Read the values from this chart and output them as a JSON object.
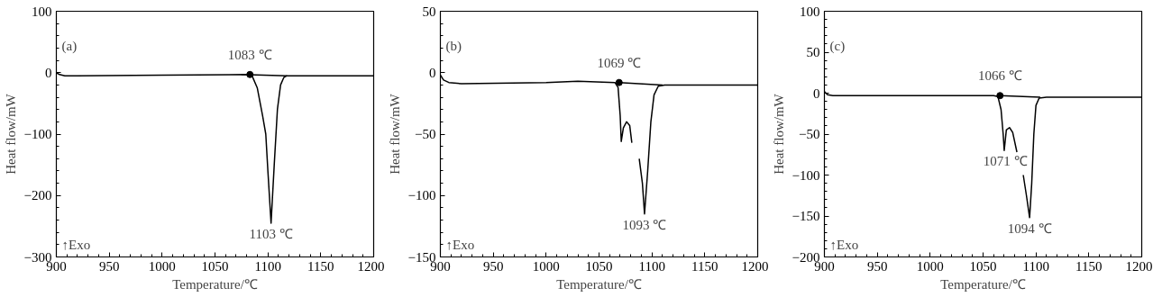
{
  "chart_data": [
    {
      "type": "line",
      "xlabel": "Temperature/℃",
      "ylabel": "Heat flow/mW",
      "xlim": [
        900,
        1200
      ],
      "ylim": [
        -300,
        100
      ],
      "xticks": [
        900,
        950,
        1000,
        1050,
        1100,
        1150,
        1200
      ],
      "yticks": [
        -300,
        -200,
        -100,
        0,
        100
      ],
      "grid": false,
      "annotations": [
        "(a)",
        "↑Exo",
        {
          "text": "1083 ℃",
          "x": 1083,
          "y": -3
        },
        {
          "text": "1103 ℃",
          "x": 1103,
          "y": -245
        }
      ],
      "series": [
        {
          "type": "line",
          "color": "#000000",
          "x": [
            900,
            903,
            908,
            920,
            1000,
            1080,
            1085,
            1090,
            1095,
            1098,
            1100,
            1103,
            1106,
            1109,
            1112,
            1115,
            1118,
            1130,
            1200
          ],
          "values": [
            0,
            -3,
            -5,
            -5,
            -4,
            -3,
            -5,
            -25,
            -70,
            -100,
            -160,
            -245,
            -150,
            -60,
            -20,
            -8,
            -5,
            -5,
            -5
          ]
        },
        {
          "color": "#000000",
          "x": [
            1075,
            1118
          ],
          "values": [
            -3,
            -5
          ]
        },
        {
          "type": "scatter",
          "marker": "circle",
          "color": "#000000",
          "x": [
            1083
          ],
          "values": [
            -3
          ]
        }
      ]
    },
    {
      "type": "line",
      "xlabel": "Temperature/℃",
      "ylabel": "Heat flow/mW",
      "xlim": [
        900,
        1200
      ],
      "ylim": [
        -150,
        50
      ],
      "xticks": [
        900,
        950,
        1000,
        1050,
        1100,
        1150,
        1200
      ],
      "yticks": [
        -150,
        -100,
        -50,
        0,
        50
      ],
      "grid": false,
      "annotations": [
        "(b)",
        "↑Exo",
        {
          "text": "1069 ℃",
          "x": 1069,
          "y": -8
        },
        {
          "text": "1093 ℃",
          "x": 1093,
          "y": -115
        }
      ],
      "series": [
        {
          "type": "line",
          "color": "#000000",
          "x": [
            900,
            903,
            908,
            920,
            1000,
            1030,
            1065,
            1068,
            1070,
            1071,
            1073,
            1076,
            1079,
            1081,
            1084,
            1088,
            1091,
            1093,
            1096,
            1099,
            1102,
            1106,
            1112,
            1130,
            1200
          ],
          "values": [
            -2,
            -6,
            -8,
            -9,
            -8,
            -7,
            -8,
            -12,
            -35,
            -56,
            -45,
            -40,
            -43,
            -57,
            null,
            -70,
            -90,
            -115,
            -80,
            -40,
            -18,
            -11,
            -10,
            -10,
            -10
          ]
        },
        {
          "color": "#000000",
          "x": [
            1069,
            1110
          ],
          "values": [
            -8,
            -10
          ]
        },
        {
          "type": "scatter",
          "marker": "circle",
          "color": "#000000",
          "x": [
            1069
          ],
          "values": [
            -8
          ]
        }
      ]
    },
    {
      "type": "line",
      "xlabel": "Temperature/℃",
      "ylabel": "Heat flow/mW",
      "xlim": [
        900,
        1200
      ],
      "ylim": [
        -200,
        100
      ],
      "xticks": [
        900,
        950,
        1000,
        1050,
        1100,
        1150,
        1200
      ],
      "yticks": [
        -200,
        -150,
        -100,
        -50,
        0,
        50,
        100
      ],
      "grid": false,
      "annotations": [
        "(c)",
        "↑Exo",
        {
          "text": "1066 ℃",
          "x": 1066,
          "y": -3
        },
        {
          "text": "1071 ℃",
          "x": 1071,
          "y": -70
        },
        {
          "text": "1094 ℃",
          "x": 1094,
          "y": -152
        }
      ],
      "series": [
        {
          "type": "line",
          "color": "#000000",
          "x": [
            900,
            903,
            908,
            920,
            1000,
            1060,
            1064,
            1067,
            1069,
            1070,
            1072,
            1075,
            1078,
            1082,
            1085,
            1088,
            1091,
            1094,
            1096,
            1098,
            1100,
            1103,
            1110,
            1200
          ],
          "values": [
            2,
            -2,
            -3,
            -3,
            -3,
            -3,
            -4,
            -20,
            -50,
            -70,
            -45,
            -42,
            -48,
            -72,
            null,
            -100,
            -125,
            -152,
            -110,
            -50,
            -15,
            -6,
            -5,
            -5
          ]
        },
        {
          "color": "#000000",
          "x": [
            1066,
            1104
          ],
          "values": [
            -3,
            -5
          ]
        },
        {
          "type": "scatter",
          "marker": "circle",
          "color": "#000000",
          "x": [
            1066
          ],
          "values": [
            -3
          ]
        }
      ]
    }
  ]
}
